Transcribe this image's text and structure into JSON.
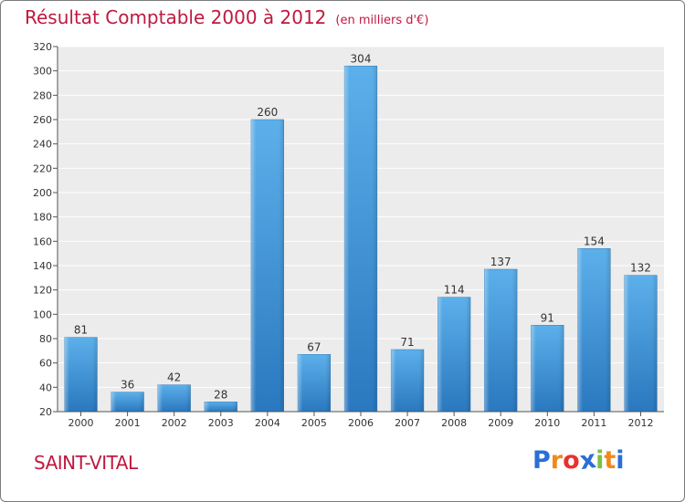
{
  "chart_data": {
    "type": "bar",
    "title": "Résultat Comptable 2000 à 2012",
    "subtitle": "(en milliers d'€)",
    "categories": [
      "2000",
      "2001",
      "2002",
      "2003",
      "2004",
      "2005",
      "2006",
      "2007",
      "2008",
      "2009",
      "2010",
      "2011",
      "2012"
    ],
    "values": [
      81,
      36,
      42,
      28,
      260,
      67,
      304,
      71,
      114,
      137,
      91,
      154,
      132
    ],
    "ylim": [
      20,
      320
    ],
    "yticks": [
      20,
      40,
      60,
      80,
      100,
      120,
      140,
      160,
      180,
      200,
      220,
      240,
      260,
      280,
      300,
      320
    ],
    "xlabel": "",
    "ylabel": "",
    "grid": true,
    "bar_color": "#3a8fd6",
    "title_color": "#c0183f"
  },
  "location": "SAINT-VITAL",
  "logo": {
    "text": "Proxiti",
    "letters": [
      "P",
      "r",
      "o",
      "x",
      "i",
      "t",
      "i"
    ],
    "colors": [
      "#2a6fd6",
      "#f08a1c",
      "#e8312f",
      "#2a6fd6",
      "#7cc242",
      "#f08a1c",
      "#2a6fd6"
    ]
  }
}
